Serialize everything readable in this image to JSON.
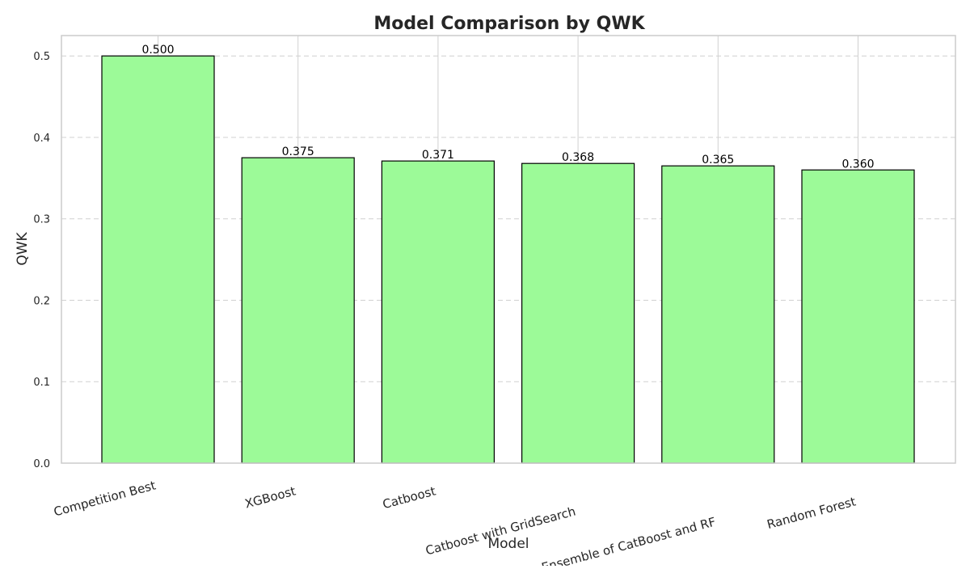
{
  "chart_data": {
    "type": "bar",
    "title": "Model Comparison by QWK",
    "xlabel": "Model",
    "ylabel": "QWK",
    "categories": [
      "Competition Best",
      "XGBoost",
      "Catboost",
      "Catboost with GridSearch",
      "Ensemble of CatBoost and RF",
      "Random Forest"
    ],
    "values": [
      0.5,
      0.375,
      0.371,
      0.368,
      0.365,
      0.36
    ],
    "data_labels": [
      "0.500",
      "0.375",
      "0.371",
      "0.368",
      "0.365",
      "0.360"
    ],
    "ylim": [
      0,
      0.525
    ],
    "yticks": [
      0.0,
      0.1,
      0.2,
      0.3,
      0.4,
      0.5
    ],
    "ytick_labels": [
      "0.0",
      "0.1",
      "0.2",
      "0.3",
      "0.4",
      "0.5"
    ],
    "grid": true,
    "bar_color": "#9cfa98",
    "bar_edge_color": "#000000",
    "legend": "none"
  }
}
